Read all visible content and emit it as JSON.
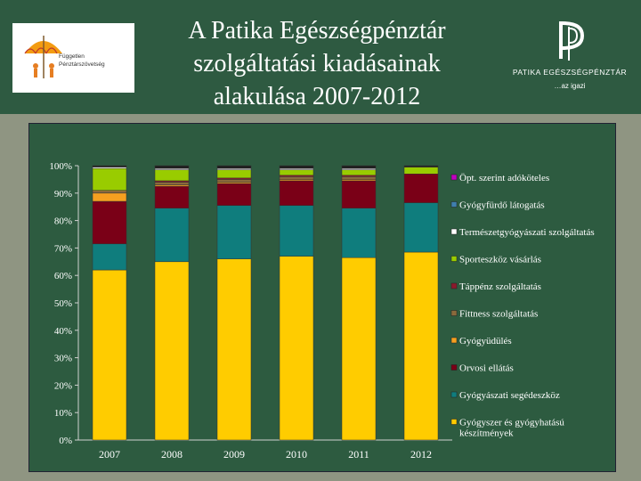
{
  "header": {
    "title_lines": [
      "A Patika Egészségpénztár",
      "szolgáltatási kiadásainak",
      "alakulása 2007-2012"
    ],
    "left_logo_text": [
      "Független",
      "Pénztárszövetség"
    ],
    "right_logo_brand": "PATIKA EGÉSZSÉGPÉNZTÁR",
    "right_logo_tagline": "…az igazi"
  },
  "colors": {
    "background_header": "#2e5a41",
    "chart_panel": "#2d5b40",
    "stage": "#8f9582"
  },
  "chart_data": {
    "type": "bar",
    "stacked": true,
    "percent": true,
    "categories": [
      "2007",
      "2008",
      "2009",
      "2010",
      "2011",
      "2012"
    ],
    "y_ticks": [
      "0%",
      "10%",
      "20%",
      "30%",
      "40%",
      "50%",
      "60%",
      "70%",
      "80%",
      "90%",
      "100%"
    ],
    "ylim": [
      0,
      100
    ],
    "legend_position": "right",
    "series": [
      {
        "name": "Gyógyszer és gyógyhatású készítmények",
        "color": "#ffcc00",
        "values": [
          62,
          65,
          66,
          67,
          66.5,
          68.5
        ]
      },
      {
        "name": "Gyógyászati segédeszköz",
        "color": "#0f7d7d",
        "values": [
          9.5,
          19.5,
          19.5,
          18.5,
          18,
          18
        ]
      },
      {
        "name": "Orvosi ellátás",
        "color": "#7a0017",
        "values": [
          15.5,
          8,
          8,
          9,
          10,
          10.5
        ]
      },
      {
        "name": "Gyógyüdülés",
        "color": "#f5a020",
        "values": [
          3,
          0.5,
          0.5,
          0.5,
          0.5,
          0
        ]
      },
      {
        "name": "Fittness szolgáltatás",
        "color": "#8a6a3c",
        "values": [
          1,
          1,
          1,
          1,
          1,
          0
        ]
      },
      {
        "name": "Táppénz szolgáltatás",
        "color": "#8b1a2c",
        "values": [
          0,
          0.5,
          0.5,
          0.5,
          0.5,
          0
        ]
      },
      {
        "name": "Sporteszköz vásárlás",
        "color": "#99cc00",
        "values": [
          8,
          4,
          3,
          2,
          2,
          2.5
        ]
      },
      {
        "name": "Természetgyógyászati szolgáltatás",
        "color": "#ffffff",
        "values": [
          0.5,
          0.5,
          0.5,
          0.5,
          0.5,
          0
        ]
      },
      {
        "name": "Gyógyfürdő látogatás",
        "color": "#3f7fae",
        "values": [
          0,
          0,
          0,
          0,
          0,
          0
        ]
      },
      {
        "name": "Öpt. szerint adóköteles",
        "color": "#c000c0",
        "values": [
          0,
          0,
          0,
          0,
          0,
          0
        ]
      }
    ],
    "legend_order_top_to_bottom": [
      "Öpt. szerint adóköteles",
      "Gyógyfürdő látogatás",
      "Természetgyógyászati szolgáltatás",
      "Sporteszköz vásárlás",
      "Táppénz szolgáltatás",
      "Fittness szolgáltatás",
      "Gyógyüdülés",
      "Orvosi ellátás",
      "Gyógyászati segédeszköz",
      "Gyógyszer és gyógyhatású készítmények"
    ]
  }
}
